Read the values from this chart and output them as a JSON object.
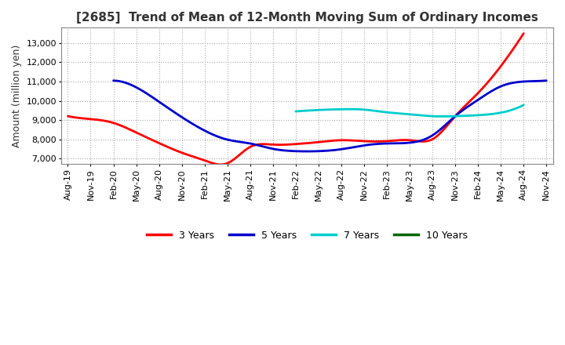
{
  "title": "[2685]  Trend of Mean of 12-Month Moving Sum of Ordinary Incomes",
  "ylabel": "Amount (million yen)",
  "ylim": [
    6700,
    13800
  ],
  "yticks": [
    7000,
    8000,
    9000,
    10000,
    11000,
    12000,
    13000
  ],
  "background_color": "#ffffff",
  "grid_color": "#aaaaaa",
  "x_labels": [
    "Aug-19",
    "Nov-19",
    "Feb-20",
    "May-20",
    "Aug-20",
    "Nov-20",
    "Feb-21",
    "May-21",
    "Aug-21",
    "Nov-21",
    "Feb-22",
    "May-22",
    "Aug-22",
    "Nov-22",
    "Feb-23",
    "May-23",
    "Aug-23",
    "Nov-23",
    "Feb-24",
    "May-24",
    "Aug-24",
    "Nov-24"
  ],
  "series": {
    "3 Years": {
      "color": "#ff0000",
      "data": [
        9200,
        9050,
        8850,
        8350,
        7800,
        7300,
        6900,
        6750,
        7600,
        7720,
        7750,
        7850,
        7950,
        7900,
        7900,
        7950,
        8000,
        9200,
        10400,
        11800,
        13500,
        null
      ]
    },
    "5 Years": {
      "color": "#0000cc",
      "data": [
        null,
        null,
        11050,
        10700,
        9950,
        9150,
        8450,
        7980,
        7780,
        7500,
        7380,
        7380,
        7480,
        7680,
        7780,
        7820,
        8200,
        9200,
        10050,
        10750,
        11000,
        11050
      ]
    },
    "7 Years": {
      "color": "#00cccc",
      "data": [
        null,
        null,
        null,
        null,
        null,
        null,
        null,
        null,
        null,
        null,
        9450,
        9520,
        9560,
        9540,
        9400,
        9300,
        9200,
        9200,
        9250,
        9380,
        9780,
        null
      ]
    },
    "10 Years": {
      "color": "#006600",
      "data": [
        null,
        null,
        null,
        null,
        null,
        null,
        null,
        null,
        null,
        null,
        null,
        null,
        null,
        null,
        null,
        null,
        null,
        null,
        null,
        null,
        null,
        null
      ]
    }
  },
  "legend_order": [
    "3 Years",
    "5 Years",
    "7 Years",
    "10 Years"
  ],
  "title_fontsize": 11,
  "title_color": "#333333",
  "tick_fontsize": 8,
  "ylabel_fontsize": 9
}
